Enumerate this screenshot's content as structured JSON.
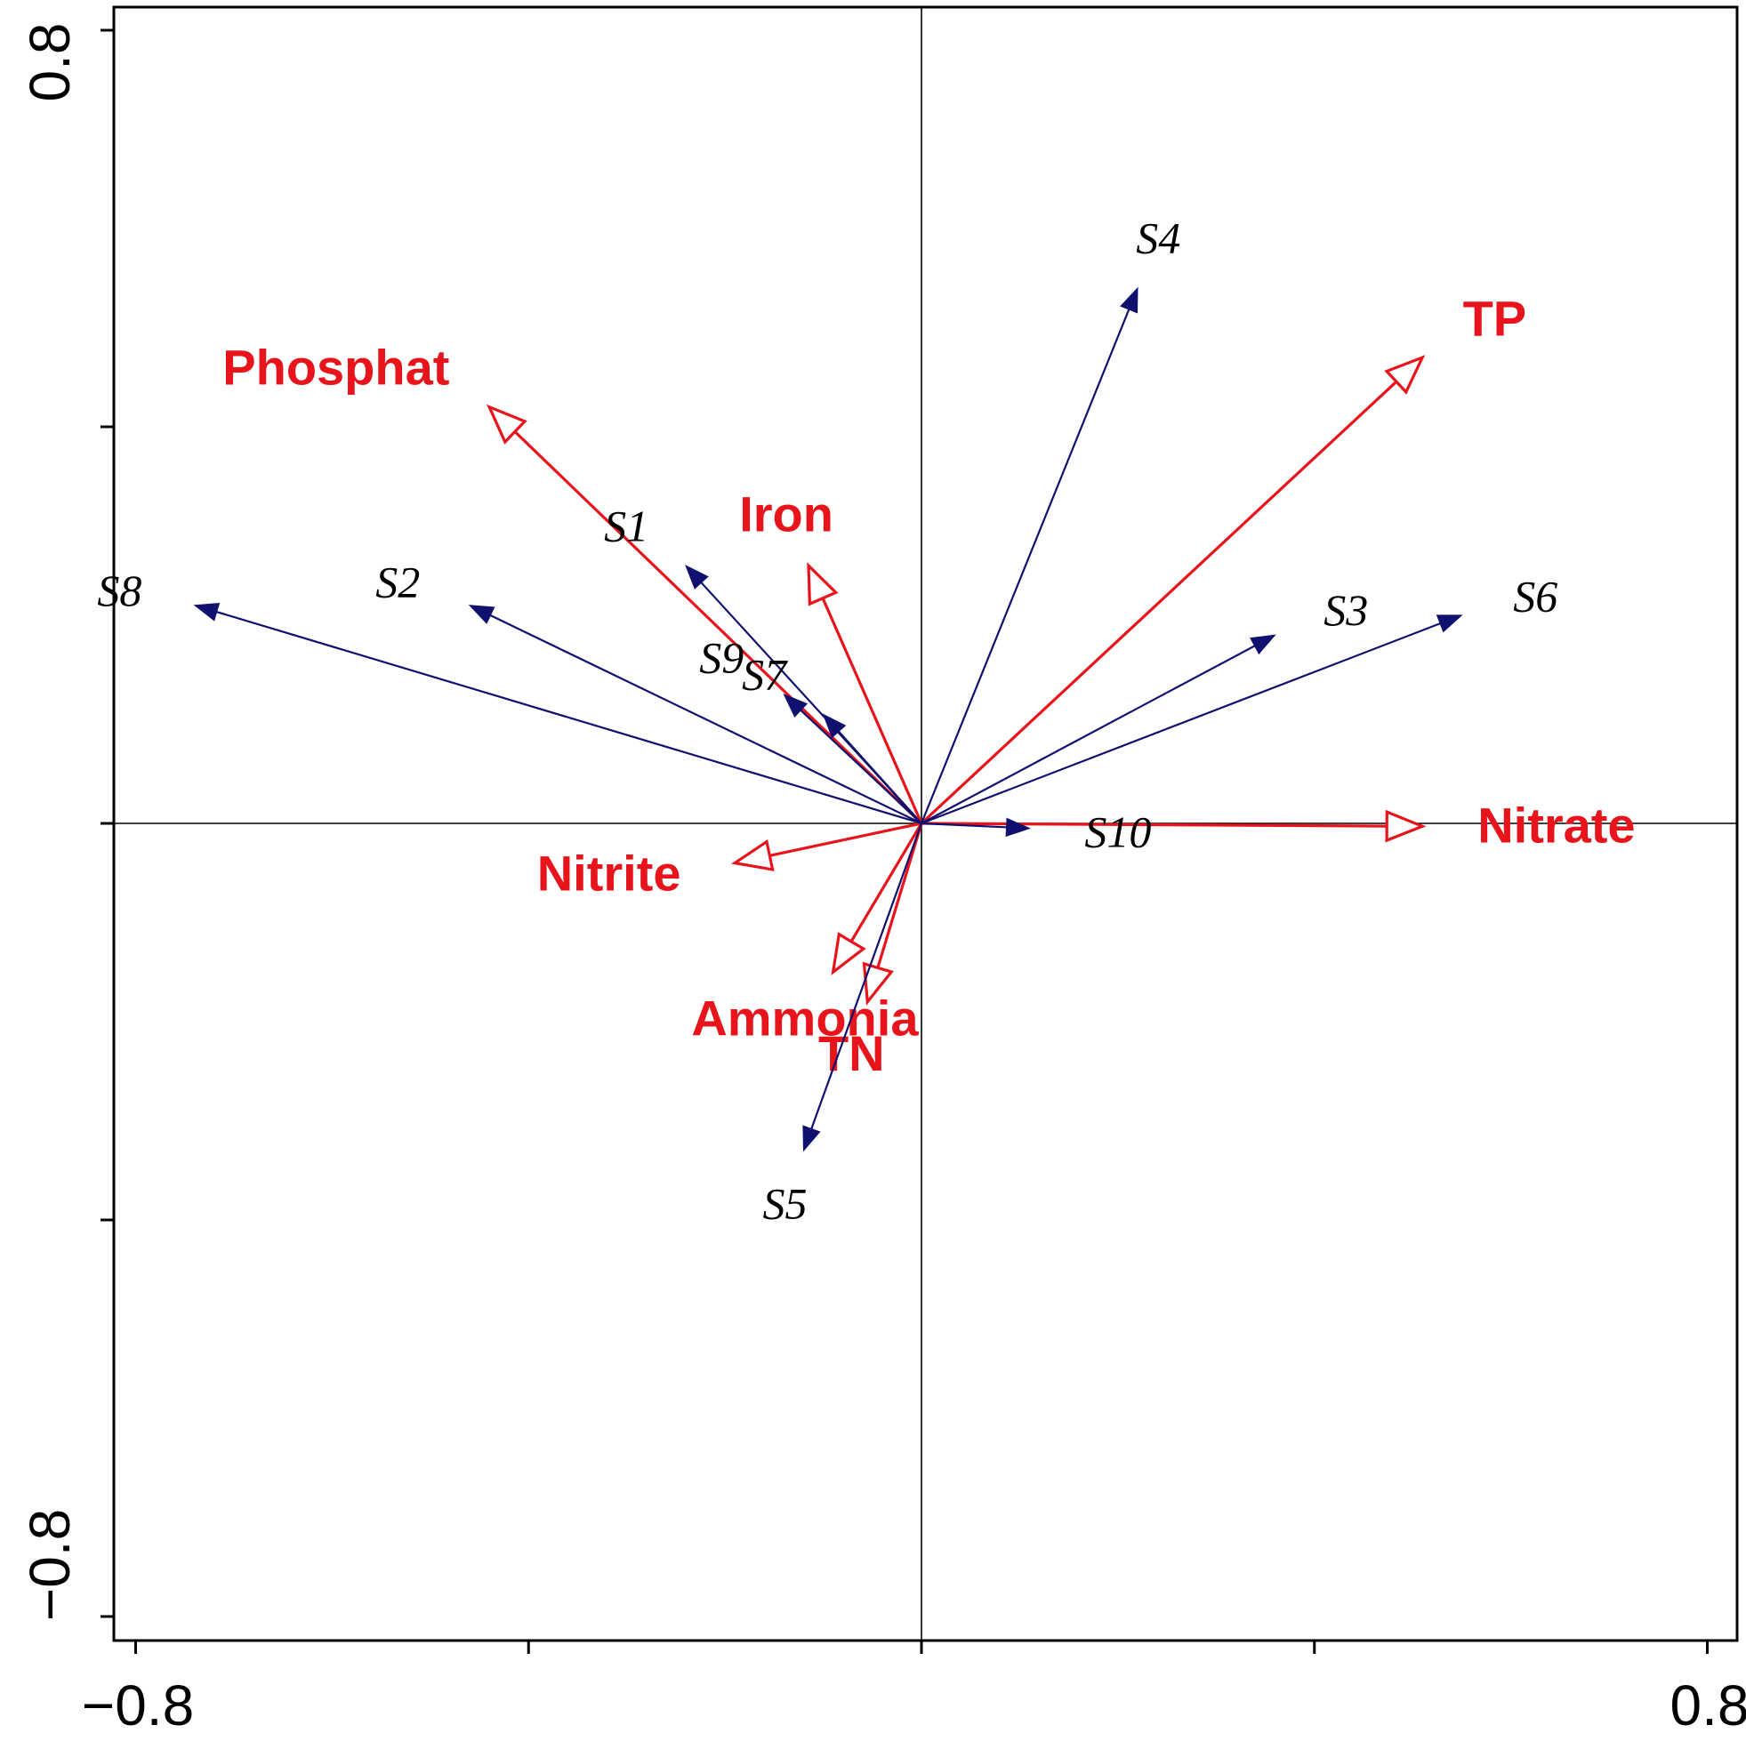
{
  "chart_data": {
    "type": "scatter",
    "subtype": "biplot-vectors",
    "xlim": [
      -0.8,
      0.8
    ],
    "ylim": [
      -0.8,
      0.8
    ],
    "x_tick_labels": [
      "−0.8",
      "0.8"
    ],
    "y_tick_labels": [
      "0.8",
      "−0.8"
    ],
    "grid": false,
    "colors": {
      "environment": "#e8141b",
      "species": "#10106e",
      "axis": "#000000"
    },
    "environment_vectors": [
      {
        "name": "Phosphat",
        "x": -0.44,
        "y": 0.42
      },
      {
        "name": "Iron",
        "x": -0.115,
        "y": 0.26
      },
      {
        "name": "TP",
        "x": 0.51,
        "y": 0.47
      },
      {
        "name": "Nitrate",
        "x": 0.51,
        "y": -0.003
      },
      {
        "name": "Nitrite",
        "x": -0.19,
        "y": -0.04
      },
      {
        "name": "Ammonia",
        "x": -0.09,
        "y": -0.15
      },
      {
        "name": "TN",
        "x": -0.055,
        "y": -0.18
      }
    ],
    "species_vectors": [
      {
        "name": "S1",
        "x": -0.24,
        "y": 0.26
      },
      {
        "name": "S2",
        "x": -0.46,
        "y": 0.22
      },
      {
        "name": "S3",
        "x": 0.36,
        "y": 0.19
      },
      {
        "name": "S4",
        "x": 0.22,
        "y": 0.54
      },
      {
        "name": "S5",
        "x": -0.12,
        "y": -0.33
      },
      {
        "name": "S6",
        "x": 0.55,
        "y": 0.21
      },
      {
        "name": "S7",
        "x": -0.1,
        "y": 0.11
      },
      {
        "name": "S8",
        "x": -0.74,
        "y": 0.22
      },
      {
        "name": "S9",
        "x": -0.14,
        "y": 0.13
      },
      {
        "name": "S10",
        "x": 0.11,
        "y": -0.005
      }
    ]
  }
}
